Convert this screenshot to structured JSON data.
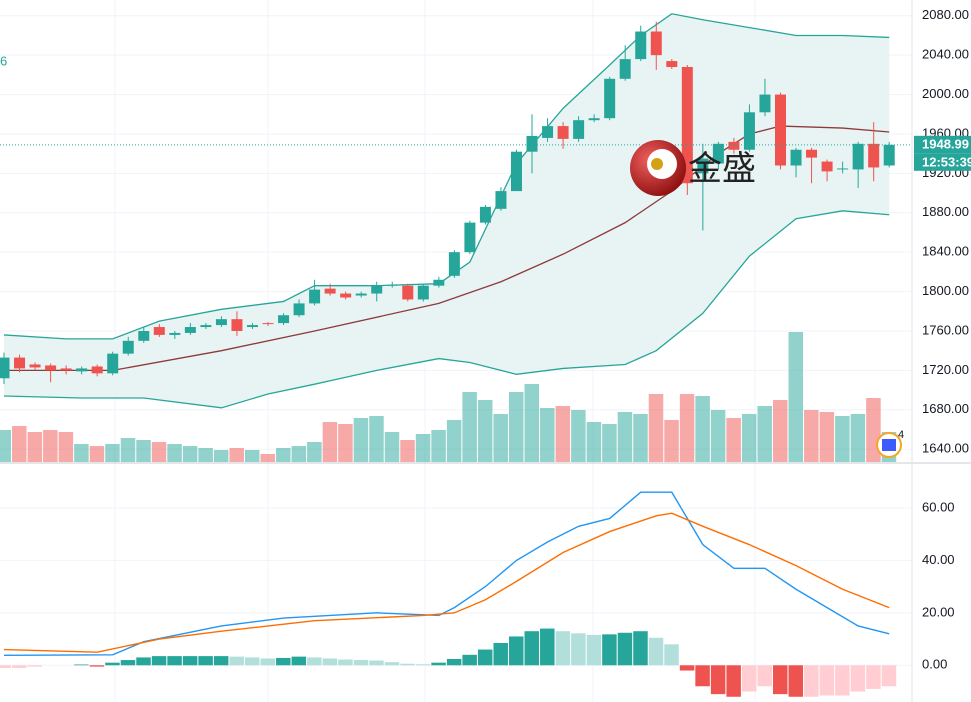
{
  "chart_data": [
    {
      "type": "candlestick",
      "open": [
        1712,
        1733,
        1726,
        1725,
        1722,
        1719,
        1724,
        1717,
        1737,
        1750,
        1764,
        1756,
        1758,
        1764,
        1766,
        1772,
        1764,
        1768,
        1768,
        1776,
        1788,
        1803,
        1798,
        1796,
        1798,
        1806,
        1806,
        1792,
        1806,
        1816,
        1840,
        1870,
        1884,
        1902,
        1942,
        1956,
        1968,
        1955,
        1974,
        1976,
        2016,
        2036,
        2064,
        2034,
        2028,
        1920,
        1930,
        1952,
        1944,
        1982,
        2000,
        1928,
        1944,
        1932,
        1924,
        1924,
        1950,
        1928
      ],
      "high": [
        1738,
        1736,
        1728,
        1727,
        1725,
        1724,
        1726,
        1739,
        1754,
        1764,
        1767,
        1760,
        1768,
        1768,
        1775,
        1780,
        1768,
        1769,
        1778,
        1792,
        1812,
        1808,
        1800,
        1800,
        1810,
        1810,
        1808,
        1808,
        1815,
        1842,
        1872,
        1888,
        1906,
        1944,
        1980,
        1976,
        1972,
        1978,
        1980,
        2018,
        2050,
        2070,
        2074,
        2036,
        2030,
        1950,
        1952,
        1956,
        1990,
        2016,
        2002,
        1946,
        1946,
        1934,
        1932,
        1952,
        1972,
        1952
      ],
      "low": [
        1706,
        1718,
        1720,
        1708,
        1716,
        1716,
        1714,
        1715,
        1735,
        1748,
        1754,
        1752,
        1756,
        1762,
        1764,
        1755,
        1762,
        1765,
        1766,
        1774,
        1786,
        1796,
        1792,
        1794,
        1790,
        1804,
        1790,
        1790,
        1804,
        1814,
        1838,
        1868,
        1882,
        1905,
        1920,
        1952,
        1945,
        1952,
        1972,
        1974,
        2014,
        2034,
        2025,
        2026,
        1898,
        1862,
        1924,
        1940,
        1942,
        1978,
        1924,
        1916,
        1910,
        1912,
        1920,
        1905,
        1912,
        1926
      ],
      "close": [
        1733,
        1722,
        1723,
        1720,
        1720,
        1722,
        1717,
        1737,
        1750,
        1760,
        1756,
        1758,
        1764,
        1766,
        1772,
        1760,
        1766,
        1767,
        1776,
        1788,
        1802,
        1798,
        1794,
        1798,
        1806,
        1807,
        1792,
        1806,
        1812,
        1840,
        1870,
        1886,
        1902,
        1942,
        1958,
        1968,
        1955,
        1974,
        1976,
        2016,
        2036,
        2064,
        2040,
        2028,
        1910,
        1935,
        1950,
        1944,
        1982,
        2000,
        1928,
        1944,
        1936,
        1922,
        1925,
        1950,
        1926,
        1948.99
      ],
      "up_color": "#26a69a",
      "down_color": "#ef5350",
      "ylim": [
        1627,
        2096
      ],
      "yticks": [
        {
          "value": 1640,
          "label": "1640.00"
        },
        {
          "value": 1680,
          "label": "1680.00"
        },
        {
          "value": 1720,
          "label": "1720.00"
        },
        {
          "value": 1760,
          "label": "1760.00"
        },
        {
          "value": 1800,
          "label": "1800.00"
        },
        {
          "value": 1840,
          "label": "1840.00"
        },
        {
          "value": 1880,
          "label": "1880.00"
        },
        {
          "value": 1920,
          "label": "1920.00"
        },
        {
          "value": 1960,
          "label": "1960.00"
        },
        {
          "value": 2000,
          "label": "2000.00"
        },
        {
          "value": 2040,
          "label": "2040.00"
        },
        {
          "value": 2080,
          "label": "2080.00"
        }
      ],
      "grid": true,
      "countdown": "12:53:39",
      "overlays": [
        {
          "color": "#26a69a",
          "x": [
            0,
            4,
            7,
            10,
            14,
            18,
            20,
            24,
            28,
            30,
            33,
            36,
            39,
            41,
            43,
            45,
            48,
            51,
            54,
            57
          ],
          "values": [
            1756,
            1752,
            1752,
            1770,
            1782,
            1790,
            1806,
            1806,
            1808,
            1830,
            1930,
            1986,
            2030,
            2060,
            2082,
            2076,
            2068,
            2060,
            2060,
            2058
          ]
        },
        {
          "color": "#26a69a",
          "x": [
            0,
            5,
            9,
            14,
            17,
            20,
            24,
            28,
            30,
            33,
            36,
            40,
            42,
            45,
            48,
            51,
            54,
            57
          ],
          "values": [
            1694,
            1692,
            1692,
            1682,
            1696,
            1706,
            1720,
            1732,
            1728,
            1716,
            1722,
            1726,
            1740,
            1778,
            1836,
            1874,
            1882,
            1878
          ]
        },
        {
          "color": "#8d3a3a",
          "x": [
            0,
            7,
            14,
            20,
            28,
            32,
            36,
            40,
            43,
            46,
            48,
            50,
            54,
            57
          ],
          "values": [
            1720,
            1720,
            1740,
            1760,
            1788,
            1810,
            1838,
            1870,
            1902,
            1940,
            1960,
            1968,
            1966,
            1962
          ]
        }
      ],
      "band_fill": "#e8f4f3",
      "volume": {
        "values": [
          32,
          36,
          30,
          32,
          30,
          18,
          16,
          18,
          24,
          22,
          20,
          18,
          16,
          14,
          12,
          14,
          12,
          8,
          14,
          16,
          20,
          40,
          38,
          44,
          46,
          30,
          22,
          28,
          32,
          42,
          70,
          62,
          48,
          70,
          78,
          54,
          56,
          52,
          40,
          38,
          50,
          48,
          68,
          42,
          68,
          66,
          52,
          44,
          48,
          56,
          62,
          130,
          52,
          50,
          46,
          48,
          64,
          30
        ],
        "ylim": [
          0,
          140
        ]
      }
    },
    {
      "type": "macd",
      "ylim": [
        -14,
        76
      ],
      "yticks": [
        {
          "value": 0,
          "label": "0.00"
        },
        {
          "value": 20,
          "label": "20.00"
        },
        {
          "value": 40,
          "label": "40.00"
        },
        {
          "value": 60,
          "label": "60.00"
        }
      ],
      "grid": true,
      "series": [
        {
          "color": "#2196f3",
          "x": [
            0,
            7,
            9,
            14,
            18,
            24,
            28,
            29,
            31,
            33,
            35,
            37,
            39,
            41,
            43,
            45,
            47,
            49,
            51,
            53,
            55,
            57
          ],
          "values": [
            3.8,
            4,
            9,
            15,
            18,
            20,
            19,
            22,
            30,
            40,
            47,
            53,
            56,
            66,
            66,
            46,
            37,
            37,
            29,
            22,
            15,
            12
          ]
        },
        {
          "color": "#ff6d00",
          "x": [
            0,
            6,
            10,
            14,
            20,
            27,
            29,
            31,
            33,
            36,
            39,
            42,
            43,
            45,
            48,
            51,
            54,
            57
          ],
          "values": [
            6,
            5,
            10,
            13,
            17,
            19,
            20,
            25,
            32,
            43,
            51,
            57,
            58,
            53,
            46,
            38,
            29,
            22
          ]
        }
      ],
      "histogram": [
        -1,
        -1,
        -0.5,
        0,
        0,
        0.3,
        -0.5,
        1,
        2,
        3,
        3.5,
        3.5,
        3.5,
        3.5,
        3.5,
        3.3,
        3,
        2.6,
        2.8,
        3.3,
        3,
        2.6,
        2.2,
        2,
        1.8,
        1.2,
        0.6,
        0.4,
        1,
        2.4,
        4,
        6,
        8.5,
        11,
        13,
        14,
        13,
        12.2,
        11.6,
        11.8,
        12.4,
        13,
        10.5,
        8,
        -2,
        -8,
        -11,
        -12,
        -10,
        -8,
        -11,
        -12,
        -12,
        -11.5,
        -11.5,
        -10,
        -9,
        -8
      ]
    }
  ],
  "watermark": "金盛",
  "indicator_fragment": "6",
  "event_count": "4"
}
